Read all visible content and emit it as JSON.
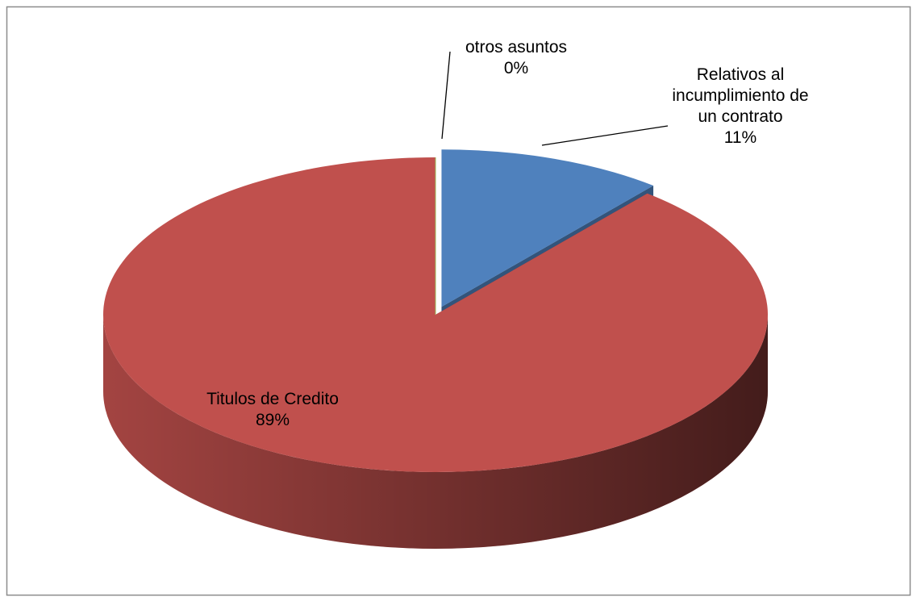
{
  "chart_data": {
    "type": "pie3d",
    "categories": [
      "Relativos al incumplimiento de un contrato",
      "Titulos de Credito",
      "otros asuntos"
    ],
    "values": [
      11,
      89,
      0
    ],
    "value_labels": [
      "11%",
      "89%",
      "0%"
    ],
    "colors": [
      "#4f81bd",
      "#c0504d",
      "#9bbb59"
    ]
  }
}
